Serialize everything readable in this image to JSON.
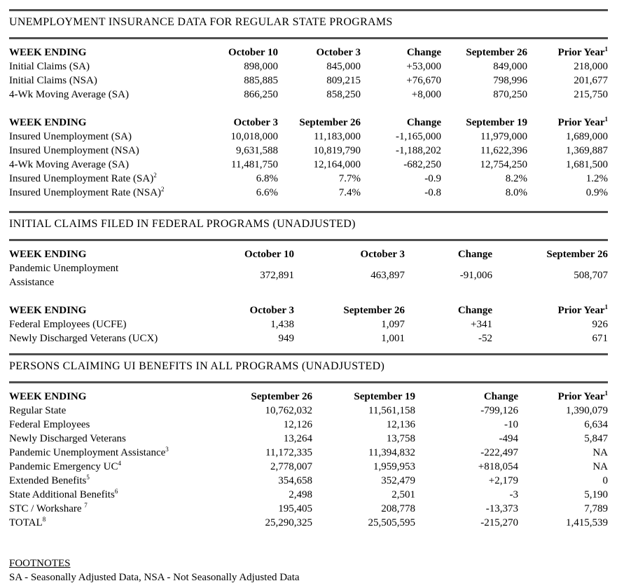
{
  "sections": [
    {
      "title": "UNEMPLOYMENT INSURANCE DATA FOR REGULAR STATE PROGRAMS",
      "tables": [
        {
          "headers": [
            {
              "text": "WEEK ENDING"
            },
            {
              "text": "October 10"
            },
            {
              "text": "October 3"
            },
            {
              "text": "Change"
            },
            {
              "text": "September 26"
            },
            {
              "text": "Prior Year",
              "sup": "1"
            }
          ],
          "rows": [
            {
              "label": "Initial Claims (SA)",
              "values": [
                "898,000",
                "845,000",
                "+53,000",
                "849,000",
                "218,000"
              ]
            },
            {
              "label": "Initial Claims (NSA)",
              "values": [
                "885,885",
                "809,215",
                "+76,670",
                "798,996",
                "201,677"
              ]
            },
            {
              "label": "4-Wk Moving Average (SA)",
              "values": [
                "866,250",
                "858,250",
                "+8,000",
                "870,250",
                "215,750"
              ]
            }
          ]
        },
        {
          "headers": [
            {
              "text": "WEEK ENDING"
            },
            {
              "text": "October 3"
            },
            {
              "text": "September 26"
            },
            {
              "text": "Change"
            },
            {
              "text": "September 19"
            },
            {
              "text": "Prior Year",
              "sup": "1"
            }
          ],
          "rows": [
            {
              "label": "Insured Unemployment (SA)",
              "values": [
                "10,018,000",
                "11,183,000",
                "-1,165,000",
                "11,979,000",
                "1,689,000"
              ]
            },
            {
              "label": "Insured Unemployment (NSA)",
              "values": [
                "9,631,588",
                "10,819,790",
                "-1,188,202",
                "11,622,396",
                "1,369,887"
              ]
            },
            {
              "label": "4-Wk Moving Average (SA)",
              "values": [
                "11,481,750",
                "12,164,000",
                "-682,250",
                "12,754,250",
                "1,681,500"
              ]
            },
            {
              "label": "Insured Unemployment Rate (SA)",
              "label_sup": "2",
              "values": [
                "6.8%",
                "7.7%",
                "-0.9",
                "8.2%",
                "1.2%"
              ]
            },
            {
              "label": "Insured Unemployment Rate (NSA)",
              "label_sup": "2",
              "values": [
                "6.6%",
                "7.4%",
                "-0.8",
                "8.0%",
                "0.9%"
              ]
            }
          ]
        }
      ]
    },
    {
      "title": "INITIAL CLAIMS FILED IN FEDERAL PROGRAMS (UNADJUSTED)",
      "tables": [
        {
          "headers": [
            {
              "text": "WEEK ENDING"
            },
            {
              "text": "October 10"
            },
            {
              "text": "October 3"
            },
            {
              "text": "Change"
            },
            {
              "text": "September 26"
            }
          ],
          "rows": [
            {
              "label": "Pandemic Unemployment Assistance",
              "values": [
                "372,891",
                "463,897",
                "-91,006",
                "508,707"
              ]
            }
          ]
        },
        {
          "headers": [
            {
              "text": "WEEK ENDING"
            },
            {
              "text": "October 3"
            },
            {
              "text": "September 26"
            },
            {
              "text": "Change"
            },
            {
              "text": "Prior Year",
              "sup": "1"
            }
          ],
          "rows": [
            {
              "label": "Federal Employees (UCFE)",
              "values": [
                "1,438",
                "1,097",
                "+341",
                "926"
              ]
            },
            {
              "label": "Newly Discharged Veterans (UCX)",
              "values": [
                "949",
                "1,001",
                "-52",
                "671"
              ]
            }
          ]
        }
      ]
    },
    {
      "title": "PERSONS CLAIMING UI BENEFITS IN ALL PROGRAMS (UNADJUSTED)",
      "tables": [
        {
          "headers": [
            {
              "text": "WEEK ENDING"
            },
            {
              "text": "September 26"
            },
            {
              "text": "September 19"
            },
            {
              "text": "Change"
            },
            {
              "text": "Prior Year",
              "sup": "1"
            }
          ],
          "rows": [
            {
              "label": "Regular State",
              "values": [
                "10,762,032",
                "11,561,158",
                "-799,126",
                "1,390,079"
              ]
            },
            {
              "label": "Federal Employees",
              "values": [
                "12,126",
                "12,136",
                "-10",
                "6,634"
              ]
            },
            {
              "label": "Newly Discharged Veterans",
              "values": [
                "13,264",
                "13,758",
                "-494",
                "5,847"
              ]
            },
            {
              "label": "Pandemic Unemployment Assistance",
              "label_sup": "3",
              "values": [
                "11,172,335",
                "11,394,832",
                "-222,497",
                "NA"
              ]
            },
            {
              "label": "Pandemic Emergency UC",
              "label_sup": "4",
              "values": [
                "2,778,007",
                "1,959,953",
                "+818,054",
                "NA"
              ]
            },
            {
              "label": "Extended Benefits",
              "label_sup": "5",
              "values": [
                "354,658",
                "352,479",
                "+2,179",
                "0"
              ]
            },
            {
              "label": "State Additional Benefits",
              "label_sup": "6",
              "values": [
                "2,498",
                "2,501",
                "-3",
                "5,190"
              ]
            },
            {
              "label": "STC / Workshare ",
              "label_sup": "7",
              "values": [
                "195,405",
                "208,778",
                "-13,373",
                "7,789"
              ]
            },
            {
              "label": "TOTAL",
              "label_sup": "8",
              "values": [
                "25,290,325",
                "25,505,595",
                "-215,270",
                "1,415,539"
              ]
            }
          ]
        }
      ]
    }
  ],
  "footnotes": {
    "heading": "FOOTNOTES",
    "sa_nsa": "SA - Seasonally Adjusted Data, NSA - Not Seasonally Adjusted Data"
  }
}
